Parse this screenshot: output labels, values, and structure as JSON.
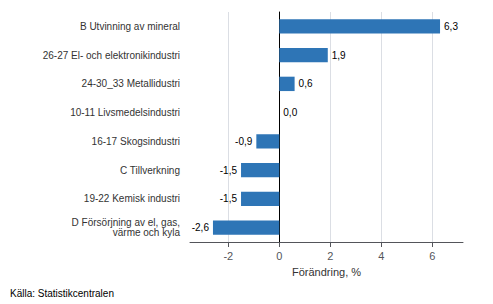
{
  "chart_data": {
    "type": "bar",
    "orientation": "horizontal",
    "categories": [
      "D Försörjning av el, gas,\nvärme och kyla",
      "19-22 Kemisk industri",
      "C Tillverkning",
      "16-17 Skogsindustri",
      "10-11 Livsmedelsindustri",
      "24-30_33 Metallidustri",
      "26-27 El- och elektronikindustri",
      "B Utvinning av mineral"
    ],
    "values": [
      -2.6,
      -1.5,
      -1.5,
      -0.9,
      0.0,
      0.6,
      1.9,
      6.3
    ],
    "value_labels": [
      "-2,6",
      "-1,5",
      "-1,5",
      "-0,9",
      "0,0",
      "0,6",
      "1,9",
      "6,3"
    ],
    "data_labels": true,
    "color": "#2E75B6",
    "xlabel": "Förändring, %",
    "annotations": [
      "Källa: Statistikcentralen"
    ],
    "xlim": [
      -3.5,
      7.2
    ],
    "xticks": [
      -2,
      0,
      2,
      4,
      6
    ],
    "grid": true
  }
}
